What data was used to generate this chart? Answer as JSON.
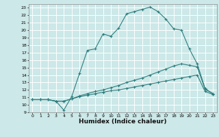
{
  "xlabel": "Humidex (Indice chaleur)",
  "bg_color": "#cce8e8",
  "grid_color": "#ffffff",
  "line_color": "#2d7d7d",
  "xlim": [
    -0.5,
    23.5
  ],
  "ylim": [
    9,
    23.5
  ],
  "xticks": [
    0,
    1,
    2,
    3,
    4,
    5,
    6,
    7,
    8,
    9,
    10,
    11,
    12,
    13,
    14,
    15,
    16,
    17,
    18,
    19,
    20,
    21,
    22,
    23
  ],
  "yticks": [
    9,
    10,
    11,
    12,
    13,
    14,
    15,
    16,
    17,
    18,
    19,
    20,
    21,
    22,
    23
  ],
  "line1_x": [
    0,
    1,
    2,
    3,
    4,
    5,
    6,
    7,
    8,
    9,
    10,
    11,
    12,
    13,
    14,
    15,
    16,
    17,
    18,
    19,
    20,
    21,
    22,
    23
  ],
  "line1_y": [
    10.7,
    10.7,
    10.7,
    10.5,
    9.3,
    11.1,
    14.2,
    17.3,
    17.5,
    19.5,
    19.2,
    20.3,
    22.2,
    22.5,
    22.8,
    23.1,
    22.5,
    21.5,
    20.2,
    20.0,
    17.5,
    15.5,
    12.2,
    11.5
  ],
  "line2_x": [
    0,
    1,
    2,
    3,
    4,
    5,
    6,
    7,
    8,
    9,
    10,
    11,
    12,
    13,
    14,
    15,
    16,
    17,
    18,
    19,
    20,
    21,
    22,
    23
  ],
  "line2_y": [
    10.7,
    10.7,
    10.7,
    10.5,
    10.5,
    10.8,
    11.2,
    11.5,
    11.8,
    12.0,
    12.3,
    12.6,
    13.0,
    13.3,
    13.6,
    14.0,
    14.4,
    14.8,
    15.2,
    15.5,
    15.3,
    15.1,
    12.1,
    11.5
  ],
  "line3_x": [
    0,
    1,
    2,
    3,
    4,
    5,
    6,
    7,
    8,
    9,
    10,
    11,
    12,
    13,
    14,
    15,
    16,
    17,
    18,
    19,
    20,
    21,
    22,
    23
  ],
  "line3_y": [
    10.7,
    10.7,
    10.7,
    10.5,
    10.5,
    10.8,
    11.1,
    11.3,
    11.5,
    11.7,
    11.9,
    12.0,
    12.2,
    12.4,
    12.6,
    12.8,
    13.0,
    13.2,
    13.4,
    13.6,
    13.8,
    14.0,
    11.8,
    11.4
  ]
}
